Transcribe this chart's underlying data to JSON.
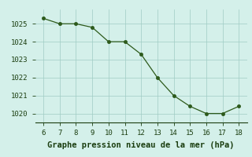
{
  "x": [
    6,
    7,
    8,
    9,
    10,
    11,
    12,
    13,
    14,
    15,
    16,
    17,
    18
  ],
  "y": [
    1025.3,
    1025.0,
    1025.0,
    1024.8,
    1024.0,
    1024.0,
    1023.3,
    1022.0,
    1021.0,
    1020.4,
    1020.0,
    1020.0,
    1020.4
  ],
  "line_color": "#2d5a1b",
  "marker": "o",
  "bg_color": "#d4f0ea",
  "grid_color": "#a0ccc4",
  "xlabel": "Graphe pression niveau de la mer (hPa)",
  "xlabel_color": "#1a3d0f",
  "xlim": [
    5.5,
    18.5
  ],
  "ylim": [
    1019.5,
    1025.8
  ],
  "xticks": [
    6,
    7,
    8,
    9,
    10,
    11,
    12,
    13,
    14,
    15,
    16,
    17,
    18
  ],
  "yticks": [
    1020,
    1021,
    1022,
    1023,
    1024,
    1025
  ],
  "tick_color": "#1a3d0f",
  "tick_fontsize": 6.5,
  "xlabel_fontsize": 7.5,
  "line_width": 0.9,
  "marker_size": 3
}
